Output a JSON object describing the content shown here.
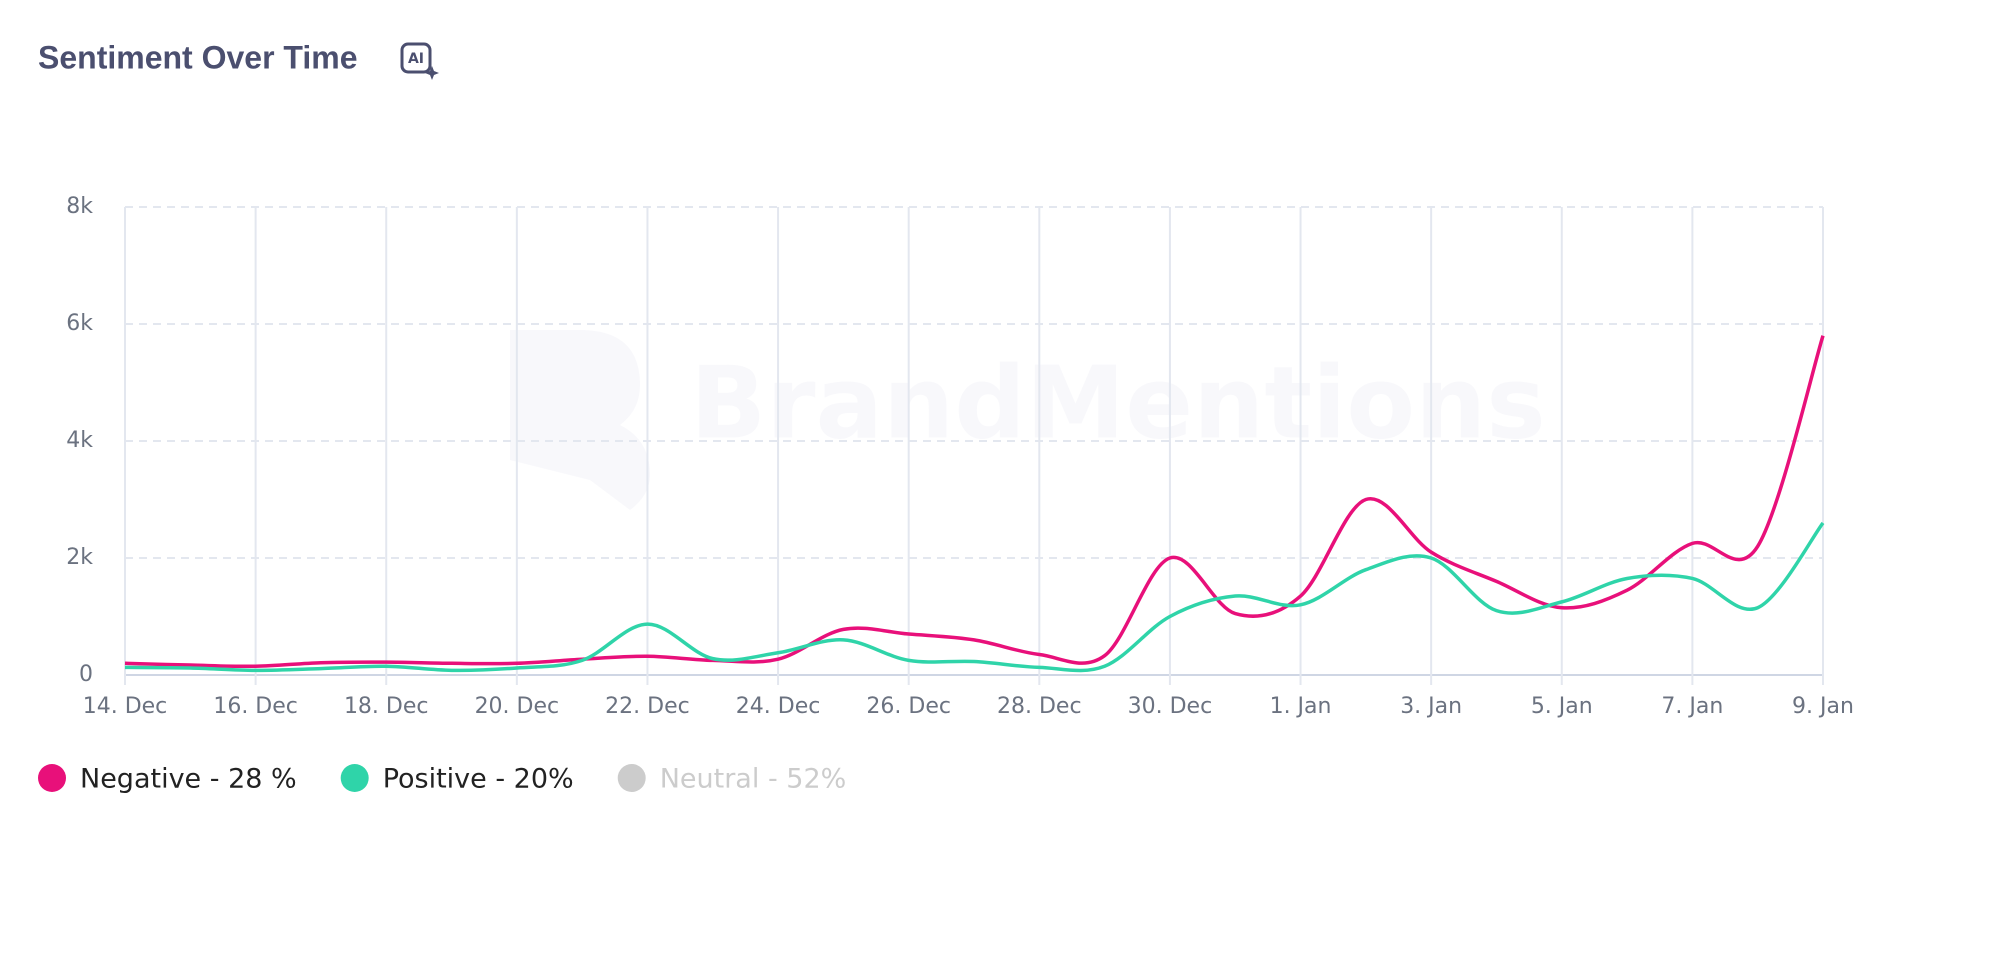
{
  "chart_data": {
    "type": "line",
    "title": "Sentiment Over Time",
    "watermark": "BrandMentions",
    "categories": [
      "14. Dec",
      null,
      "16. Dec",
      null,
      "18. Dec",
      null,
      "20. Dec",
      null,
      "22. Dec",
      null,
      "24. Dec",
      null,
      "26. Dec",
      null,
      "28. Dec",
      null,
      "30. Dec",
      null,
      "1. Jan",
      null,
      "3. Jan",
      null,
      "5. Jan",
      null,
      "7. Jan",
      null,
      "9. Jan"
    ],
    "series": [
      {
        "name": "Negative - 28 %",
        "color": "#e8107a",
        "values": [
          200,
          170,
          150,
          210,
          220,
          200,
          200,
          270,
          320,
          250,
          270,
          780,
          700,
          600,
          350,
          330,
          2000,
          1050,
          1350,
          3000,
          2100,
          1600,
          1150,
          1450,
          2250,
          2200,
          5800
        ]
      },
      {
        "name": "Positive - 20%",
        "color": "#2fd4a9",
        "values": [
          130,
          120,
          80,
          110,
          150,
          80,
          120,
          250,
          870,
          280,
          380,
          600,
          250,
          230,
          130,
          150,
          1000,
          1350,
          1200,
          1800,
          2000,
          1100,
          1250,
          1650,
          1650,
          1150,
          2600
        ]
      },
      {
        "name": "Neutral - 52%",
        "color": "#cccccc",
        "visible": false
      }
    ],
    "ylim": [
      0,
      8000
    ],
    "yticks": [
      0,
      {
        "value": 2000,
        "label": "2k"
      },
      {
        "value": 4000,
        "label": "4k"
      },
      {
        "value": 6000,
        "label": "6k"
      },
      {
        "value": 8000,
        "label": "8k"
      }
    ],
    "grid": true
  }
}
